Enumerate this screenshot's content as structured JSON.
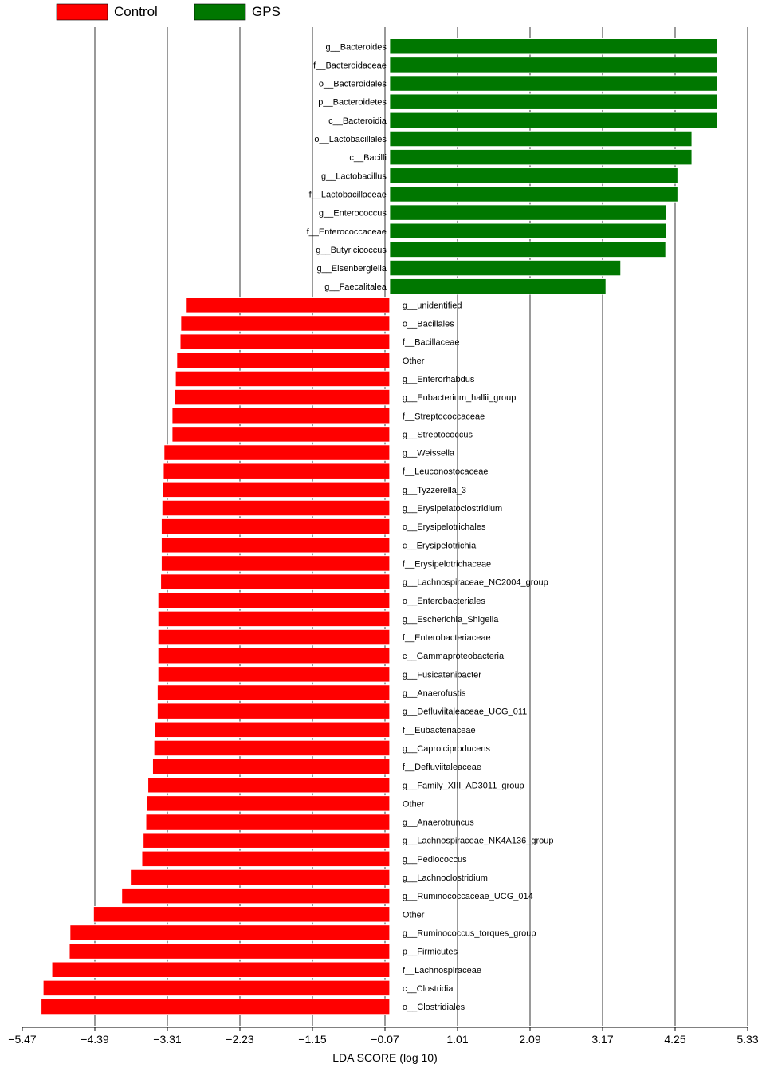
{
  "chart_data": {
    "type": "bar",
    "orientation": "horizontal",
    "xlabel": "LDA SCORE (log 10)",
    "ylabel": "",
    "title": "",
    "xticks": [
      -5.47,
      -4.39,
      -3.31,
      -2.23,
      -1.15,
      -0.07,
      1.01,
      2.09,
      3.17,
      4.25,
      5.33
    ],
    "xlim": [
      -5.47,
      5.33
    ],
    "grid": "vertical",
    "legend_position": "top-left",
    "series": [
      {
        "name": "Control",
        "color": "#ff0000"
      },
      {
        "name": "GPS",
        "color": "#007700"
      }
    ],
    "bars": [
      {
        "label": "g__Bacteroides",
        "value": 4.88,
        "group": "GPS"
      },
      {
        "label": "f__Bacteroidaceae",
        "value": 4.88,
        "group": "GPS"
      },
      {
        "label": "o__Bacteroidales",
        "value": 4.88,
        "group": "GPS"
      },
      {
        "label": "p__Bacteroidetes",
        "value": 4.88,
        "group": "GPS"
      },
      {
        "label": "c__Bacteroidia",
        "value": 4.88,
        "group": "GPS"
      },
      {
        "label": "o__Lactobacillales",
        "value": 4.5,
        "group": "GPS"
      },
      {
        "label": "c__Bacilli",
        "value": 4.5,
        "group": "GPS"
      },
      {
        "label": "g__Lactobacillus",
        "value": 4.29,
        "group": "GPS"
      },
      {
        "label": "f__Lactobacillaceae",
        "value": 4.29,
        "group": "GPS"
      },
      {
        "label": "g__Enterococcus",
        "value": 4.12,
        "group": "GPS"
      },
      {
        "label": "f__Enterococcaceae",
        "value": 4.12,
        "group": "GPS"
      },
      {
        "label": "g__Butyricicoccus",
        "value": 4.11,
        "group": "GPS"
      },
      {
        "label": "g__Eisenbergiella",
        "value": 3.44,
        "group": "GPS"
      },
      {
        "label": "g__Faecalitalea",
        "value": 3.22,
        "group": "GPS"
      },
      {
        "label": "g__unidentified",
        "value": -3.04,
        "group": "Control"
      },
      {
        "label": "o__Bacillales",
        "value": -3.11,
        "group": "Control"
      },
      {
        "label": "f__Bacillaceae",
        "value": -3.12,
        "group": "Control"
      },
      {
        "label": "Other",
        "value": -3.17,
        "group": "Control"
      },
      {
        "label": "g__Enterorhabdus",
        "value": -3.19,
        "group": "Control"
      },
      {
        "label": "g__Eubacterium_hallii_group",
        "value": -3.2,
        "group": "Control"
      },
      {
        "label": "f__Streptococcaceae",
        "value": -3.24,
        "group": "Control"
      },
      {
        "label": "g__Streptococcus",
        "value": -3.24,
        "group": "Control"
      },
      {
        "label": "g__Weissella",
        "value": -3.36,
        "group": "Control"
      },
      {
        "label": "f__Leuconostocaceae",
        "value": -3.37,
        "group": "Control"
      },
      {
        "label": "g__Tyzzerella_3",
        "value": -3.38,
        "group": "Control"
      },
      {
        "label": "g__Erysipelatoclostridium",
        "value": -3.39,
        "group": "Control"
      },
      {
        "label": "o__Erysipelotrichales",
        "value": -3.4,
        "group": "Control"
      },
      {
        "label": "c__Erysipelotrichia",
        "value": -3.4,
        "group": "Control"
      },
      {
        "label": "f__Erysipelotrichaceae",
        "value": -3.4,
        "group": "Control"
      },
      {
        "label": "g__Lachnospiraceae_NC2004_group",
        "value": -3.41,
        "group": "Control"
      },
      {
        "label": "o__Enterobacteriales",
        "value": -3.45,
        "group": "Control"
      },
      {
        "label": "g__Escherichia_Shigella",
        "value": -3.45,
        "group": "Control"
      },
      {
        "label": "f__Enterobacteriaceae",
        "value": -3.45,
        "group": "Control"
      },
      {
        "label": "c__Gammaproteobacteria",
        "value": -3.45,
        "group": "Control"
      },
      {
        "label": "g__Fusicatenibacter",
        "value": -3.45,
        "group": "Control"
      },
      {
        "label": "g__Anaerofustis",
        "value": -3.46,
        "group": "Control"
      },
      {
        "label": "g__Defluviitaleaceae_UCG_011",
        "value": -3.46,
        "group": "Control"
      },
      {
        "label": "f__Eubacteriaceae",
        "value": -3.5,
        "group": "Control"
      },
      {
        "label": "g__Caproiciproducens",
        "value": -3.51,
        "group": "Control"
      },
      {
        "label": "f__Defluviitaleaceae",
        "value": -3.53,
        "group": "Control"
      },
      {
        "label": "g__Family_XIII_AD3011_group",
        "value": -3.6,
        "group": "Control"
      },
      {
        "label": "Other",
        "value": -3.62,
        "group": "Control"
      },
      {
        "label": "g__Anaerotruncus",
        "value": -3.63,
        "group": "Control"
      },
      {
        "label": "g__Lachnospiraceae_NK4A136_group",
        "value": -3.67,
        "group": "Control"
      },
      {
        "label": "g__Pediococcus",
        "value": -3.69,
        "group": "Control"
      },
      {
        "label": "g__Lachnoclostridium",
        "value": -3.86,
        "group": "Control"
      },
      {
        "label": "g__Ruminococcaceae_UCG_014",
        "value": -3.99,
        "group": "Control"
      },
      {
        "label": "Other",
        "value": -4.41,
        "group": "Control"
      },
      {
        "label": "g__Ruminococcus_torques_group",
        "value": -4.76,
        "group": "Control"
      },
      {
        "label": "p__Firmicutes",
        "value": -4.77,
        "group": "Control"
      },
      {
        "label": "f__Lachnospiraceae",
        "value": -5.03,
        "group": "Control"
      },
      {
        "label": "c__Clostridia",
        "value": -5.16,
        "group": "Control"
      },
      {
        "label": "o__Clostridiales",
        "value": -5.19,
        "group": "Control"
      }
    ]
  }
}
